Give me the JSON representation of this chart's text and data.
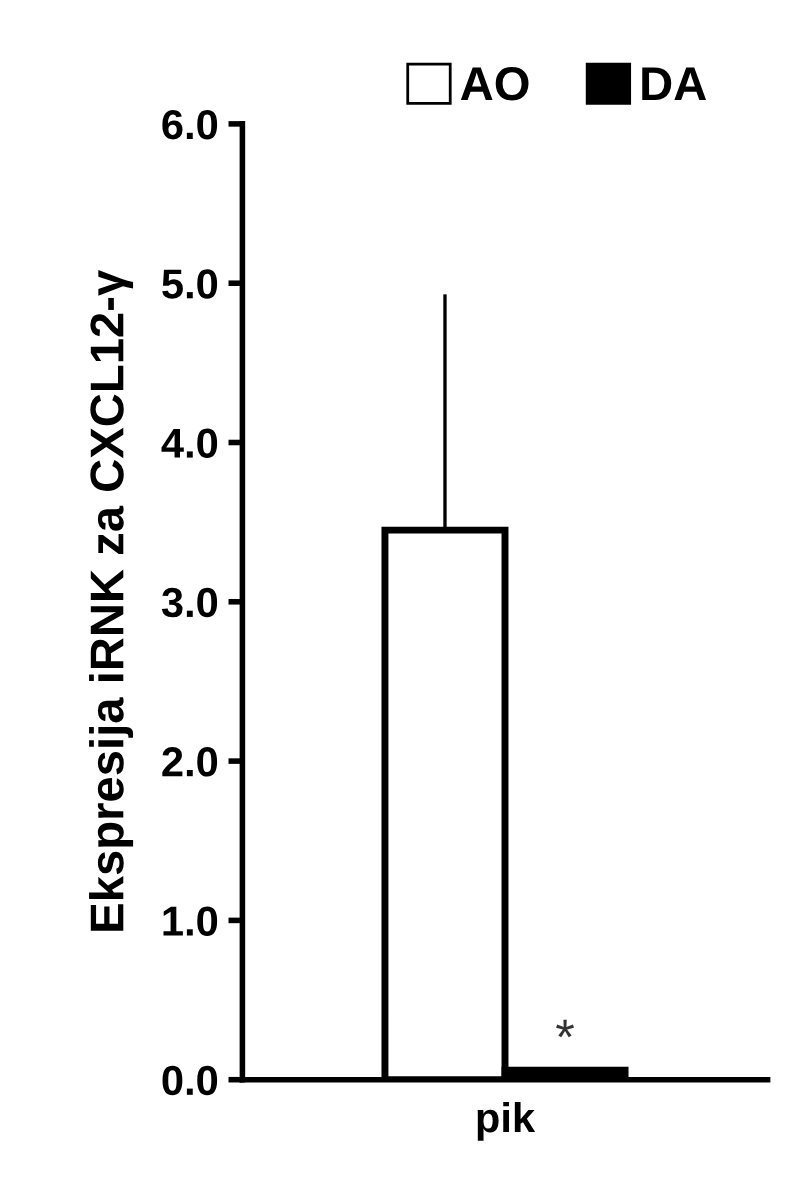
{
  "chart_data": {
    "type": "bar",
    "ylabel": "Ekspresija iRNK za CXCL12-γ",
    "categories": [
      "pik"
    ],
    "series": [
      {
        "name": "AO",
        "color": "#ffffff",
        "values": [
          3.45
        ],
        "errors": [
          [
            3.45,
            4.93
          ]
        ]
      },
      {
        "name": "DA",
        "color": "#000000",
        "values": [
          0.06
        ]
      }
    ],
    "ylim": [
      0,
      6
    ],
    "yticks": [
      {
        "value": 0,
        "label": "0.0"
      },
      {
        "value": 1,
        "label": "1.0"
      },
      {
        "value": 2,
        "label": "2.0"
      },
      {
        "value": 3,
        "label": "3.0"
      },
      {
        "value": 4,
        "label": "4.0"
      },
      {
        "value": 5,
        "label": "5.0"
      },
      {
        "value": 6,
        "label": "6.0"
      }
    ],
    "annotations": [
      {
        "text": "*",
        "x": "pik",
        "y": 0.06
      }
    ],
    "legend": "top",
    "grid": false
  }
}
